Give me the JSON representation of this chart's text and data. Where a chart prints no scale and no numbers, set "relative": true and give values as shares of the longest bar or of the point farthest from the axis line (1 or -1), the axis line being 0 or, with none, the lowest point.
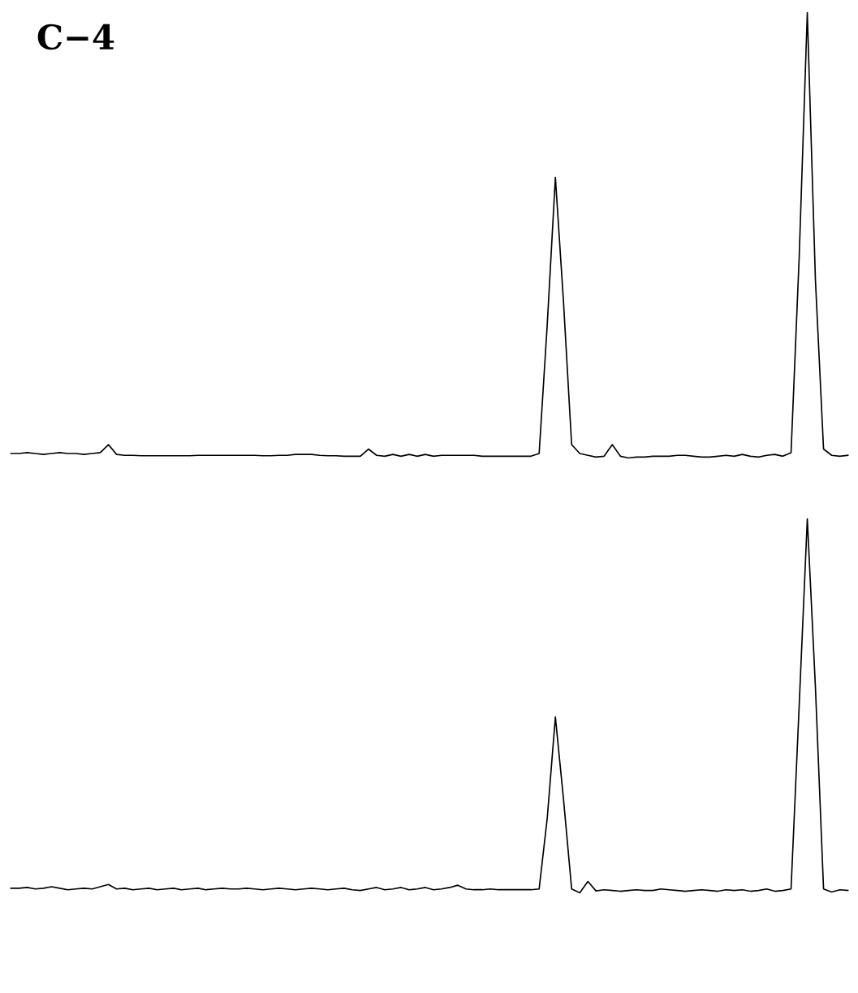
{
  "chart_data": [
    {
      "type": "line",
      "title": "C−4",
      "relative": true,
      "categories": [
        null,
        null,
        null,
        null,
        null,
        null,
        null,
        null,
        null,
        null,
        null,
        null,
        null,
        null,
        null,
        null,
        null,
        null,
        null,
        null,
        null,
        null,
        null,
        null,
        null,
        null,
        null,
        null,
        null,
        null,
        null,
        null,
        null,
        null,
        null,
        null,
        null,
        null,
        null,
        null,
        null,
        null,
        null,
        null,
        null,
        null,
        null,
        null,
        null,
        null,
        null,
        null,
        null,
        null,
        null,
        null,
        null,
        null,
        null,
        null,
        null,
        null,
        null,
        null,
        null,
        null,
        null,
        null,
        null,
        null,
        null,
        null,
        null,
        null,
        null,
        null,
        null,
        null,
        null,
        null,
        null,
        null,
        null,
        null,
        null,
        null,
        null,
        null,
        null,
        null,
        null,
        null,
        null,
        null,
        null,
        null,
        null,
        null,
        null,
        null,
        null,
        null,
        null,
        null
      ],
      "series": [
        {
          "color": "#000000",
          "values": [
            0.01,
            0.01,
            0.012,
            0.01,
            0.008,
            0.01,
            0.012,
            0.01,
            0.01,
            0.008,
            0.01,
            0.012,
            0.03,
            0.008,
            0.006,
            0.006,
            0.005,
            0.005,
            0.005,
            0.005,
            0.005,
            0.005,
            0.005,
            0.006,
            0.006,
            0.006,
            0.006,
            0.006,
            0.006,
            0.006,
            0.006,
            0.005,
            0.005,
            0.006,
            0.006,
            0.008,
            0.008,
            0.008,
            0.006,
            0.005,
            0.005,
            0.004,
            0.004,
            0.004,
            0.02,
            0.006,
            0.004,
            0.008,
            0.004,
            0.008,
            0.004,
            0.008,
            0.004,
            0.006,
            0.006,
            0.006,
            0.006,
            0.006,
            0.004,
            0.004,
            0.004,
            0.004,
            0.004,
            0.004,
            0.004,
            0.01,
            0.3,
            0.63,
            0.35,
            0.03,
            0.01,
            0.006,
            0.002,
            0.004,
            0.03,
            0.004,
            0,
            0.002,
            0.002,
            0.004,
            0.004,
            0.004,
            0.006,
            0.006,
            0.004,
            0.002,
            0.002,
            0.004,
            0.006,
            0.004,
            0.008,
            0.004,
            0.002,
            0.006,
            0.008,
            0.004,
            0.012,
            0.45,
            1.0,
            0.4,
            0.02,
            0.006,
            0.004,
            0.006
          ]
        }
      ]
    },
    {
      "type": "line",
      "relative": true,
      "categories": [
        null,
        null,
        null,
        null,
        null,
        null,
        null,
        null,
        null,
        null,
        null,
        null,
        null,
        null,
        null,
        null,
        null,
        null,
        null,
        null,
        null,
        null,
        null,
        null,
        null,
        null,
        null,
        null,
        null,
        null,
        null,
        null,
        null,
        null,
        null,
        null,
        null,
        null,
        null,
        null,
        null,
        null,
        null,
        null,
        null,
        null,
        null,
        null,
        null,
        null,
        null,
        null,
        null,
        null,
        null,
        null,
        null,
        null,
        null,
        null,
        null,
        null,
        null,
        null,
        null,
        null,
        null,
        null,
        null,
        null,
        null,
        null,
        null,
        null,
        null,
        null,
        null,
        null,
        null,
        null,
        null,
        null,
        null,
        null,
        null,
        null,
        null,
        null,
        null,
        null,
        null,
        null,
        null,
        null,
        null,
        null,
        null,
        null,
        null,
        null,
        null,
        null,
        null,
        null
      ],
      "series": [
        {
          "color": "#000000",
          "values": [
            0.012,
            0.012,
            0.014,
            0.01,
            0.012,
            0.016,
            0.012,
            0.008,
            0.01,
            0.012,
            0.01,
            0.016,
            0.022,
            0.01,
            0.012,
            0.008,
            0.01,
            0.012,
            0.008,
            0.01,
            0.012,
            0.008,
            0.01,
            0.012,
            0.008,
            0.01,
            0.012,
            0.01,
            0.01,
            0.012,
            0.01,
            0.008,
            0.01,
            0.012,
            0.01,
            0.008,
            0.01,
            0.012,
            0.01,
            0.008,
            0.01,
            0.012,
            0.008,
            0.006,
            0.01,
            0.014,
            0.008,
            0.01,
            0.014,
            0.008,
            0.01,
            0.014,
            0.008,
            0.01,
            0.014,
            0.02,
            0.01,
            0.008,
            0.008,
            0.01,
            0.008,
            0.008,
            0.008,
            0.008,
            0.008,
            0.01,
            0.2,
            0.47,
            0.25,
            0.01,
            0,
            0.03,
            0.005,
            0.008,
            0.006,
            0.004,
            0.006,
            0.008,
            0.006,
            0.006,
            0.01,
            0.008,
            0.006,
            0.004,
            0.006,
            0.008,
            0.006,
            0.004,
            0.008,
            0.006,
            0.008,
            0.004,
            0.006,
            0.01,
            0.004,
            0.006,
            0.01,
            0.5,
            1.0,
            0.55,
            0.01,
            0.002,
            0.008,
            0.006
          ]
        }
      ]
    }
  ]
}
